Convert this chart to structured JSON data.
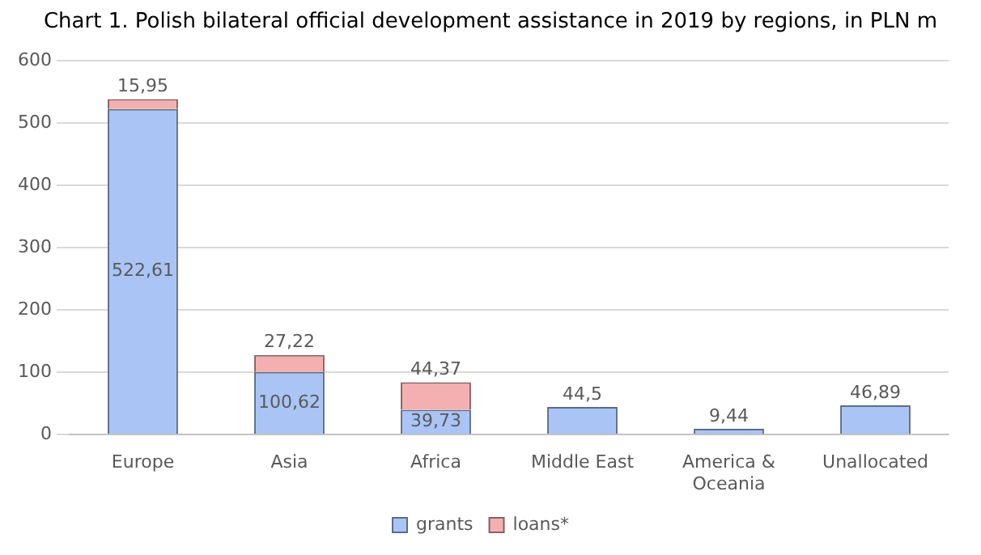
{
  "chart_data": {
    "type": "bar",
    "title": "Chart 1. Polish bilateral official development assistance in 2019 by regions, in PLN m",
    "categories": [
      "Europe",
      "Asia",
      "Africa",
      "Middle East",
      "America & Oceania",
      "Unallocated"
    ],
    "stacked": true,
    "series": [
      {
        "name": "grants",
        "color": "#a9c4f5",
        "values": [
          522.61,
          100.62,
          39.73,
          44.5,
          9.44,
          46.89
        ],
        "value_labels": [
          "522,61",
          "100,62",
          "39,73",
          "44,5",
          "9,44",
          "46,89"
        ]
      },
      {
        "name": "loans*",
        "color": "#f4b0b0",
        "values": [
          15.95,
          27.22,
          44.37,
          null,
          null,
          null
        ],
        "value_labels": [
          "15,95",
          "27,22",
          "44,37",
          null,
          null,
          null
        ]
      }
    ],
    "ylim": [
      0,
      600
    ],
    "yticks": [
      0,
      100,
      200,
      300,
      400,
      500,
      600
    ],
    "grid": "y",
    "legend": "bottom"
  }
}
